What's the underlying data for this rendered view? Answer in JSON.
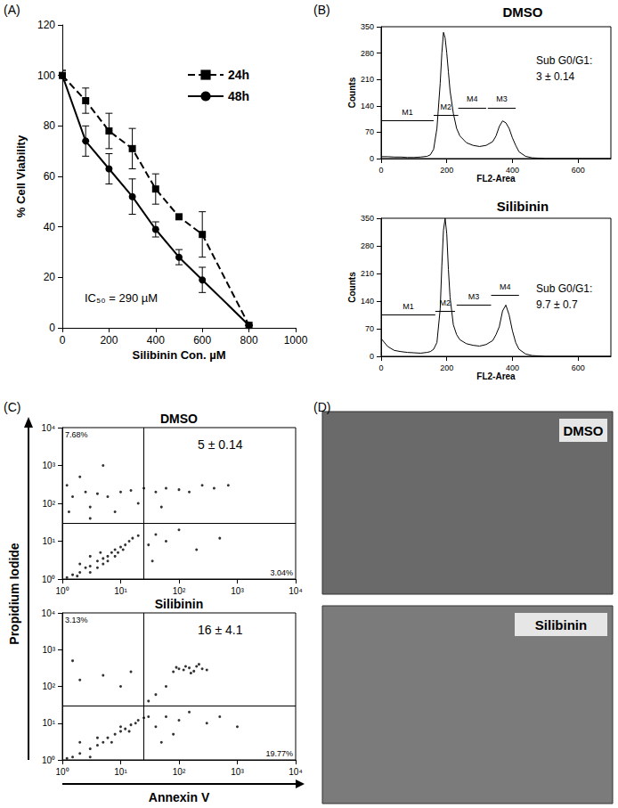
{
  "chart_data": [
    {
      "type": "line",
      "title": "(A)",
      "x_label": "Silibinin Con. µM",
      "y_label": "% Cell Viability",
      "x": [
        0,
        100,
        200,
        300,
        400,
        500,
        600,
        800
      ],
      "series": [
        {
          "name": "24h",
          "color": "#000000",
          "line_style": "dashed",
          "marker": "square",
          "values": [
            100,
            90,
            78,
            71,
            55,
            44,
            37,
            1
          ],
          "errors": [
            2,
            5,
            7,
            8,
            6,
            1,
            9,
            0
          ]
        },
        {
          "name": "48h",
          "color": "#000000",
          "line_style": "solid",
          "marker": "circle",
          "values": [
            100,
            74,
            63,
            52,
            39,
            28,
            19,
            1
          ],
          "errors": [
            2,
            6,
            6,
            7,
            3,
            3,
            5,
            0
          ]
        }
      ],
      "xlim": [
        0,
        1000
      ],
      "xticks": [
        0,
        200,
        400,
        600,
        800,
        1000
      ],
      "ylim": [
        0,
        120
      ],
      "yticks": [
        0,
        20,
        40,
        60,
        80,
        100,
        120
      ],
      "annotations": [
        "IC₅₀ = 290 µM"
      ],
      "legend": "upper right",
      "grid": false
    },
    {
      "type": "line",
      "title": "(B)",
      "subtitle": "DMSO",
      "x_label": "FL2-Area",
      "y_label": "Counts",
      "color": "#000000",
      "x": [
        0,
        20,
        40,
        60,
        80,
        100,
        120,
        140,
        150,
        160,
        170,
        180,
        185,
        190,
        195,
        200,
        205,
        210,
        220,
        230,
        240,
        260,
        280,
        300,
        320,
        340,
        350,
        360,
        370,
        380,
        390,
        400,
        410,
        420,
        440,
        460,
        480,
        500,
        600,
        700
      ],
      "values": [
        5,
        5,
        4,
        4,
        3,
        3,
        4,
        6,
        10,
        25,
        80,
        200,
        280,
        335,
        320,
        280,
        230,
        180,
        120,
        80,
        60,
        42,
        35,
        32,
        35,
        45,
        60,
        85,
        100,
        95,
        80,
        55,
        35,
        18,
        6,
        2,
        1,
        0,
        0,
        0
      ],
      "xlim": [
        0,
        700
      ],
      "xticks": [
        0,
        200,
        400,
        600
      ],
      "ylim": [
        0,
        350
      ],
      "yticks": [
        0,
        70,
        140,
        210,
        280,
        350
      ],
      "gates": [
        {
          "label": "M1",
          "range": [
            0,
            160
          ],
          "level": 100
        },
        {
          "label": "M2",
          "range": [
            160,
            235
          ],
          "level": 115
        },
        {
          "label": "M4",
          "range": [
            235,
            320
          ],
          "level": 135
        },
        {
          "label": "M3",
          "range": [
            325,
            410
          ],
          "level": 135
        }
      ],
      "annotations": [
        "Sub G0/G1:",
        "3 ± 0.14"
      ]
    },
    {
      "type": "line",
      "subtitle": "Silibinin",
      "x_label": "FL2-Area",
      "y_label": "Counts",
      "color": "#000000",
      "x": [
        0,
        20,
        40,
        60,
        80,
        100,
        120,
        140,
        150,
        160,
        170,
        180,
        185,
        190,
        195,
        200,
        205,
        210,
        220,
        230,
        240,
        260,
        280,
        300,
        320,
        340,
        350,
        360,
        370,
        380,
        390,
        400,
        410,
        420,
        440,
        460,
        480,
        500,
        600,
        700
      ],
      "values": [
        45,
        25,
        15,
        12,
        10,
        9,
        8,
        10,
        12,
        18,
        35,
        120,
        230,
        320,
        350,
        310,
        220,
        150,
        80,
        55,
        42,
        32,
        28,
        26,
        30,
        40,
        55,
        75,
        115,
        130,
        105,
        65,
        35,
        18,
        6,
        2,
        1,
        0,
        0,
        0
      ],
      "xlim": [
        0,
        700
      ],
      "xticks": [
        0,
        200,
        400,
        600
      ],
      "ylim": [
        0,
        350
      ],
      "yticks": [
        0,
        70,
        140,
        210,
        280,
        350
      ],
      "gates": [
        {
          "label": "M1",
          "range": [
            0,
            165
          ],
          "level": 105
        },
        {
          "label": "M2",
          "range": [
            165,
            225
          ],
          "level": 115
        },
        {
          "label": "M3",
          "range": [
            230,
            335
          ],
          "level": 130
        },
        {
          "label": "M4",
          "range": [
            335,
            420
          ],
          "level": 155
        }
      ],
      "annotations": [
        "Sub G0/G1:",
        "9.7 ± 0.7"
      ]
    },
    {
      "type": "scatter",
      "title": "(C)",
      "subtitle": "DMSO",
      "color": "#000000",
      "marker": "dot",
      "log": true,
      "x": [
        1.2,
        1.5,
        2,
        2.5,
        3,
        3,
        4,
        4,
        5,
        5,
        6,
        7,
        8,
        8,
        10,
        12,
        14,
        16,
        3,
        2,
        6,
        9,
        11,
        1.8,
        4.5,
        20,
        1.5,
        2.5,
        4,
        6,
        10,
        15,
        25,
        40,
        60,
        100,
        150,
        250,
        400,
        700,
        3,
        8,
        20,
        50,
        1.2,
        2,
        5,
        3,
        1.3,
        30,
        40,
        60,
        100,
        200,
        500,
        35
      ],
      "values": [
        1.1,
        1.3,
        1.5,
        2,
        2.2,
        1.5,
        3,
        2,
        3.5,
        2.5,
        4,
        5,
        6,
        4,
        7,
        8,
        10,
        12,
        4,
        2.5,
        3,
        5,
        6,
        1.2,
        5,
        14,
        150,
        200,
        180,
        150,
        200,
        220,
        250,
        200,
        250,
        230,
        200,
        300,
        250,
        300,
        80,
        60,
        100,
        80,
        300,
        500,
        1000,
        40,
        60,
        8,
        15,
        10,
        20,
        6,
        12,
        3
      ],
      "xlim": [
        1,
        10000
      ],
      "ylim": [
        1,
        10000
      ],
      "xticks": [
        {
          "value": 1,
          "label": "10⁰"
        },
        {
          "value": 10,
          "label": "10¹"
        },
        {
          "value": 100,
          "label": "10²"
        },
        {
          "value": 1000,
          "label": "10³"
        },
        {
          "value": 10000,
          "label": "10⁴"
        }
      ],
      "yticks": [
        {
          "value": 1,
          "label": "10⁰"
        },
        {
          "value": 10,
          "label": "10¹"
        },
        {
          "value": 100,
          "label": "10²"
        },
        {
          "value": 1000,
          "label": "10³"
        },
        {
          "value": 10000,
          "label": "10⁴"
        }
      ],
      "quadrant": {
        "x": 25,
        "y": 30
      },
      "quadrant_labels": {
        "upper_left": "7.68%",
        "lower_right": "3.04%"
      },
      "annotations": [
        "5 ± 0.14"
      ]
    },
    {
      "type": "scatter",
      "subtitle": "Silibinin",
      "x_label": "Annexin V",
      "y_label": "Propidium Iodide",
      "color": "#000000",
      "marker": "dot",
      "log": true,
      "x": [
        1.5,
        2,
        3,
        4,
        5,
        6,
        8,
        10,
        12,
        15,
        18,
        20,
        25,
        30,
        2,
        4,
        7,
        10,
        14,
        3,
        1.2,
        80,
        100,
        120,
        150,
        200,
        250,
        300,
        180,
        130,
        90,
        220,
        160,
        40,
        60,
        80,
        100,
        150,
        300,
        500,
        1000,
        50,
        2,
        5,
        10,
        15,
        1.5,
        40,
        60,
        30
      ],
      "values": [
        1.2,
        1.5,
        2,
        2.5,
        3,
        4,
        5,
        6,
        7,
        9,
        10,
        12,
        14,
        15,
        3,
        4,
        3,
        8,
        6,
        1.2,
        1.1,
        250,
        300,
        280,
        320,
        350,
        300,
        280,
        260,
        350,
        330,
        400,
        230,
        8,
        15,
        5,
        12,
        20,
        10,
        15,
        8,
        3,
        150,
        200,
        100,
        250,
        500,
        60,
        100,
        40
      ],
      "xlim": [
        1,
        10000
      ],
      "ylim": [
        1,
        10000
      ],
      "xticks": [
        {
          "value": 1,
          "label": "10⁰"
        },
        {
          "value": 10,
          "label": "10¹"
        },
        {
          "value": 100,
          "label": "10²"
        },
        {
          "value": 1000,
          "label": "10³"
        },
        {
          "value": 10000,
          "label": "10⁴"
        }
      ],
      "yticks": [
        {
          "value": 1,
          "label": "10⁰"
        },
        {
          "value": 10,
          "label": "10¹"
        },
        {
          "value": 100,
          "label": "10²"
        },
        {
          "value": 1000,
          "label": "10³"
        },
        {
          "value": 10000,
          "label": "10⁴"
        }
      ],
      "quadrant": {
        "x": 25,
        "y": 30
      },
      "quadrant_labels": {
        "upper_left": "3.13%",
        "lower_right": "19.77%"
      },
      "annotations": [
        "16 ± 4.1"
      ]
    },
    {
      "type": "image",
      "title": "(D)",
      "panels": [
        "DMSO",
        "Silibinin"
      ]
    }
  ]
}
